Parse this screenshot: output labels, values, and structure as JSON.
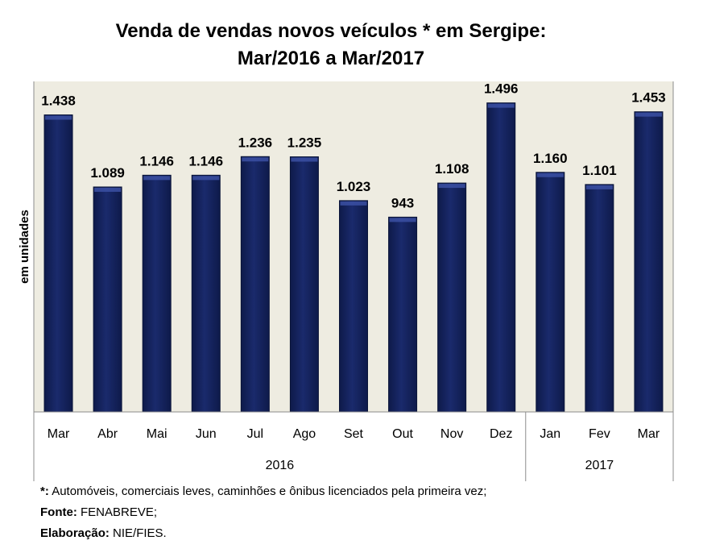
{
  "chart_data": {
    "type": "bar",
    "title": "Venda de vendas novos veículos * em Sergipe:",
    "subtitle": "Mar/2016 a Mar/2017",
    "ylabel": "em unidades",
    "xlabel": "",
    "categories": [
      "Mar",
      "Abr",
      "Mai",
      "Jun",
      "Jul",
      "Ago",
      "Set",
      "Out",
      "Nov",
      "Dez",
      "Jan",
      "Fev",
      "Mar"
    ],
    "values": [
      1438,
      1089,
      1146,
      1146,
      1236,
      1235,
      1023,
      943,
      1108,
      1496,
      1160,
      1101,
      1453
    ],
    "data_labels": [
      "1.438",
      "1.089",
      "1.146",
      "1.146",
      "1.236",
      "1.235",
      "1.023",
      "943",
      "1.108",
      "1.496",
      "1.160",
      "1.101",
      "1.453"
    ],
    "groups": [
      {
        "label": "2016",
        "count": 10
      },
      {
        "label": "2017",
        "count": 3
      }
    ],
    "ylim": [
      0,
      1600
    ],
    "grid": false,
    "legend": "none",
    "colors": {
      "bar": "#1a2a6c",
      "bar_dark": "#0e1a4a",
      "bar_light": "#3d52a8",
      "plot_bg": "#eeece1"
    }
  },
  "footnotes": {
    "note_marker": "*:",
    "note_text": "Automóveis, comerciais leves, caminhões e ônibus licenciados pela primeira vez;",
    "source_label": "Fonte:",
    "source_text": "FENABREVE;",
    "prep_label": "Elaboração:",
    "prep_text": "NIE/FIES."
  }
}
